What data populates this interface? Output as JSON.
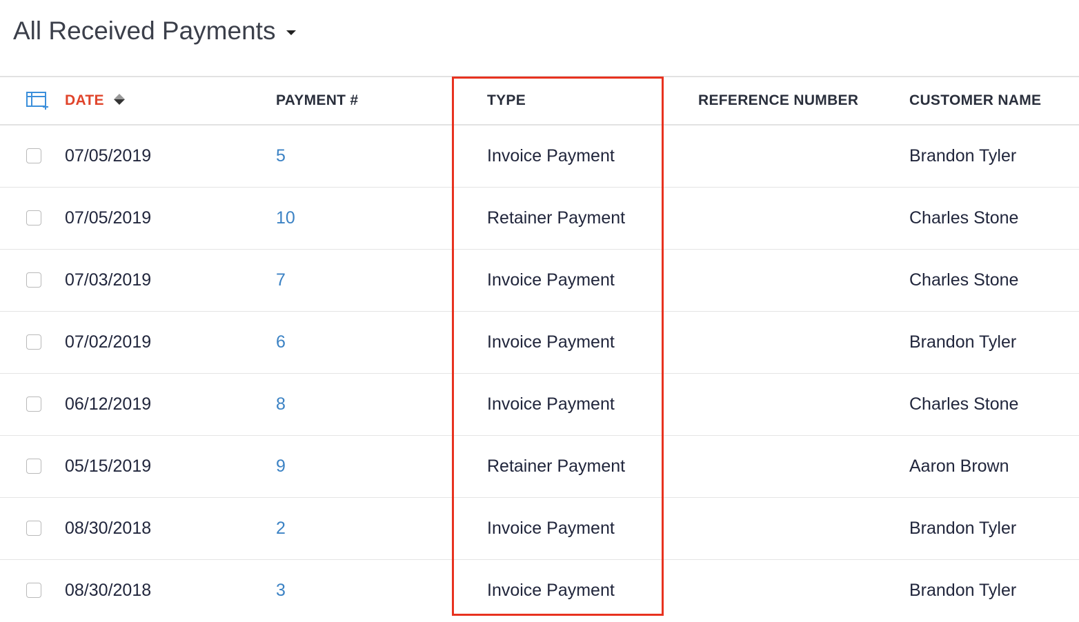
{
  "view": {
    "title": "All Received Payments"
  },
  "columns": {
    "date": "DATE",
    "payment_number": "PAYMENT #",
    "type": "TYPE",
    "reference_number": "REFERENCE NUMBER",
    "customer_name": "CUSTOMER NAME"
  },
  "colors": {
    "accent": "#3b82c4",
    "sorted_header": "#e0442b",
    "highlight": "#e8321f"
  },
  "rows": [
    {
      "date": "07/05/2019",
      "payment_number": "5",
      "type": "Invoice Payment",
      "reference_number": "",
      "customer_name": "Brandon Tyler"
    },
    {
      "date": "07/05/2019",
      "payment_number": "10",
      "type": "Retainer Payment",
      "reference_number": "",
      "customer_name": "Charles Stone"
    },
    {
      "date": "07/03/2019",
      "payment_number": "7",
      "type": "Invoice Payment",
      "reference_number": "",
      "customer_name": "Charles Stone"
    },
    {
      "date": "07/02/2019",
      "payment_number": "6",
      "type": "Invoice Payment",
      "reference_number": "",
      "customer_name": "Brandon Tyler"
    },
    {
      "date": "06/12/2019",
      "payment_number": "8",
      "type": "Invoice Payment",
      "reference_number": "",
      "customer_name": "Charles Stone"
    },
    {
      "date": "05/15/2019",
      "payment_number": "9",
      "type": "Retainer Payment",
      "reference_number": "",
      "customer_name": "Aaron Brown"
    },
    {
      "date": "08/30/2018",
      "payment_number": "2",
      "type": "Invoice Payment",
      "reference_number": "",
      "customer_name": "Brandon Tyler"
    },
    {
      "date": "08/30/2018",
      "payment_number": "3",
      "type": "Invoice Payment",
      "reference_number": "",
      "customer_name": "Brandon Tyler"
    }
  ]
}
